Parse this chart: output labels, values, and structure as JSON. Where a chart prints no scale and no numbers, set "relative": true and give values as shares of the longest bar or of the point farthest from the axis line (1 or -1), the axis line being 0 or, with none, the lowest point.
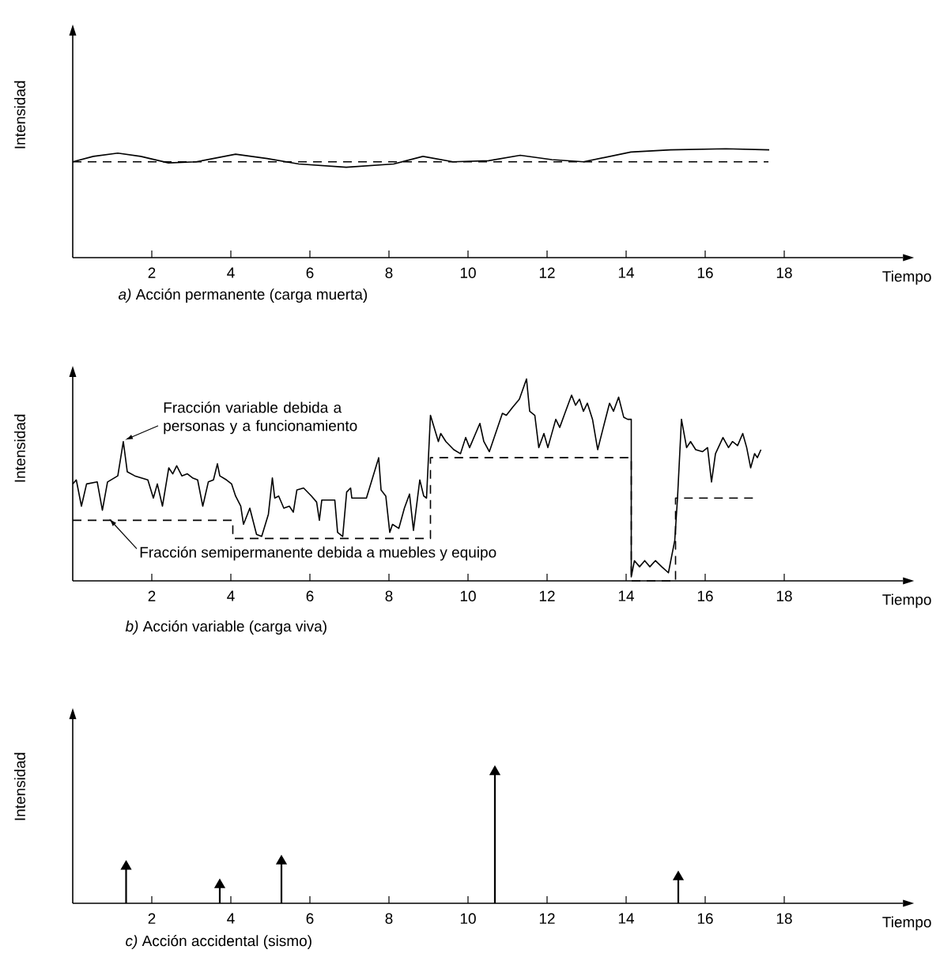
{
  "chart_data": [
    {
      "type": "line",
      "relative": true,
      "title": "*a)* Acción permanente (carga muerta)",
      "xlabel": "Tiempo",
      "ylabel": "Intensidad",
      "xlim": [
        0,
        21
      ],
      "xticks": [
        2,
        4,
        6,
        8,
        10,
        12,
        14,
        16,
        18
      ],
      "series": [
        {
          "color": "#000000",
          "x": [
            0,
            0.52,
            1.14,
            1.72,
            2.42,
            3.12,
            4.12,
            4.92,
            5.72,
            6.92,
            8.12,
            8.86,
            9.62,
            10.52,
            11.32,
            12.12,
            12.92,
            14.12,
            15.12,
            16.52,
            17.62
          ],
          "values": [
            0.88,
            0.93,
            0.96,
            0.93,
            0.87,
            0.88,
            0.95,
            0.91,
            0.86,
            0.83,
            0.86,
            0.93,
            0.88,
            0.89,
            0.94,
            0.9,
            0.88,
            0.97,
            0.99,
            1.0,
            0.99
          ]
        },
        {
          "color": "#000000",
          "line_style": "dashed",
          "x": [
            0,
            17.6
          ],
          "values": [
            0.88,
            0.88
          ]
        }
      ]
    },
    {
      "type": "line",
      "relative": true,
      "title": "*b)* Acción variable (carga viva)",
      "xlabel": "Tiempo",
      "ylabel": "Intensidad",
      "xlim": [
        0,
        21
      ],
      "xticks": [
        2,
        4,
        6,
        8,
        10,
        12,
        14,
        16,
        18
      ],
      "annotations": [
        {
          "text": "Fracción variable debida a personas y a funcionamiento",
          "x": 1.28,
          "y": 0.69
        },
        {
          "text": "Fracción semipermanente debida a muebles y equipo",
          "x": 0.88,
          "y": 0.3
        }
      ],
      "series": [
        {
          "color": "#000000",
          "x": [
            0,
            0.09,
            0.22,
            0.35,
            0.62,
            0.75,
            0.88,
            1.14,
            1.28,
            1.38,
            1.57,
            1.9,
            2.04,
            2.14,
            2.27,
            2.43,
            2.53,
            2.63,
            2.76,
            2.9,
            3.03,
            3.16,
            3.29,
            3.43,
            3.56,
            3.66,
            3.72,
            3.89,
            4.02,
            4.12,
            4.25,
            4.32,
            4.48,
            4.65,
            4.78,
            4.95,
            5.05,
            5.11,
            5.21,
            5.34,
            5.48,
            5.58,
            5.67,
            5.84,
            6.04,
            6.17,
            6.24,
            6.3,
            6.63,
            6.7,
            6.83,
            6.93,
            7.03,
            7.06,
            7.43,
            7.74,
            7.8,
            7.92,
            8.02,
            8.09,
            8.25,
            8.39,
            8.52,
            8.62,
            8.78,
            8.88,
            8.95,
            9.05,
            9.25,
            9.31,
            9.44,
            9.64,
            9.81,
            9.94,
            10.04,
            10.3,
            10.4,
            10.54,
            10.87,
            10.97,
            11.13,
            11.3,
            11.48,
            11.56,
            11.69,
            11.79,
            11.92,
            12.02,
            12.22,
            12.32,
            12.45,
            12.62,
            12.72,
            12.82,
            12.92,
            13.02,
            13.15,
            13.28,
            13.41,
            13.58,
            13.68,
            13.81,
            13.94,
            14.04,
            14.13,
            14.13,
            14.21,
            14.34,
            14.47,
            14.6,
            14.74,
            14.9,
            15.07,
            15.23,
            15.3,
            15.4,
            15.53,
            15.63,
            15.76,
            15.93,
            16.06,
            16.16,
            16.26,
            16.45,
            16.59,
            16.69,
            16.82,
            16.95,
            17.05,
            17.15,
            17.25,
            17.32,
            17.41
          ],
          "values": [
            0.48,
            0.5,
            0.37,
            0.48,
            0.49,
            0.35,
            0.49,
            0.52,
            0.69,
            0.54,
            0.52,
            0.5,
            0.41,
            0.48,
            0.37,
            0.56,
            0.53,
            0.57,
            0.52,
            0.53,
            0.51,
            0.5,
            0.37,
            0.49,
            0.5,
            0.58,
            0.52,
            0.5,
            0.48,
            0.42,
            0.37,
            0.28,
            0.36,
            0.23,
            0.22,
            0.33,
            0.51,
            0.41,
            0.42,
            0.36,
            0.37,
            0.34,
            0.45,
            0.46,
            0.42,
            0.39,
            0.3,
            0.4,
            0.4,
            0.24,
            0.22,
            0.44,
            0.46,
            0.41,
            0.41,
            0.61,
            0.45,
            0.42,
            0.24,
            0.28,
            0.26,
            0.36,
            0.43,
            0.25,
            0.5,
            0.42,
            0.41,
            0.82,
            0.69,
            0.73,
            0.69,
            0.65,
            0.63,
            0.71,
            0.66,
            0.78,
            0.69,
            0.64,
            0.83,
            0.82,
            0.86,
            0.9,
            1.0,
            0.84,
            0.82,
            0.66,
            0.73,
            0.66,
            0.8,
            0.76,
            0.83,
            0.92,
            0.87,
            0.9,
            0.84,
            0.88,
            0.8,
            0.65,
            0.75,
            0.88,
            0.84,
            0.91,
            0.81,
            0.8,
            0.8,
            0.02,
            0.1,
            0.07,
            0.1,
            0.07,
            0.1,
            0.07,
            0.04,
            0.2,
            0.41,
            0.8,
            0.66,
            0.69,
            0.65,
            0.64,
            0.66,
            0.49,
            0.63,
            0.71,
            0.66,
            0.69,
            0.67,
            0.73,
            0.66,
            0.56,
            0.63,
            0.61,
            0.65
          ]
        },
        {
          "color": "#000000",
          "line_style": "dashed",
          "x": [
            0,
            4.05,
            4.05,
            9.05,
            9.05,
            14.13,
            14.13,
            15.25,
            15.25,
            17.23
          ],
          "values": [
            0.3,
            0.3,
            0.21,
            0.21,
            0.61,
            0.61,
            0,
            0,
            0.41,
            0.41
          ]
        }
      ]
    },
    {
      "type": "lollipop",
      "relative": true,
      "marker": "triangle",
      "title": "*c)* Acción accidental (sismo)",
      "xlabel": "Tiempo",
      "ylabel": "Intensidad",
      "xlim": [
        0,
        21
      ],
      "xticks": [
        2,
        4,
        6,
        8,
        10,
        12,
        14,
        16,
        18
      ],
      "series": [
        {
          "color": "#000000",
          "x": [
            1.35,
            3.72,
            5.28,
            10.68,
            15.32
          ],
          "values": [
            0.28,
            0.14,
            0.32,
            1.0,
            0.2
          ]
        }
      ]
    }
  ]
}
